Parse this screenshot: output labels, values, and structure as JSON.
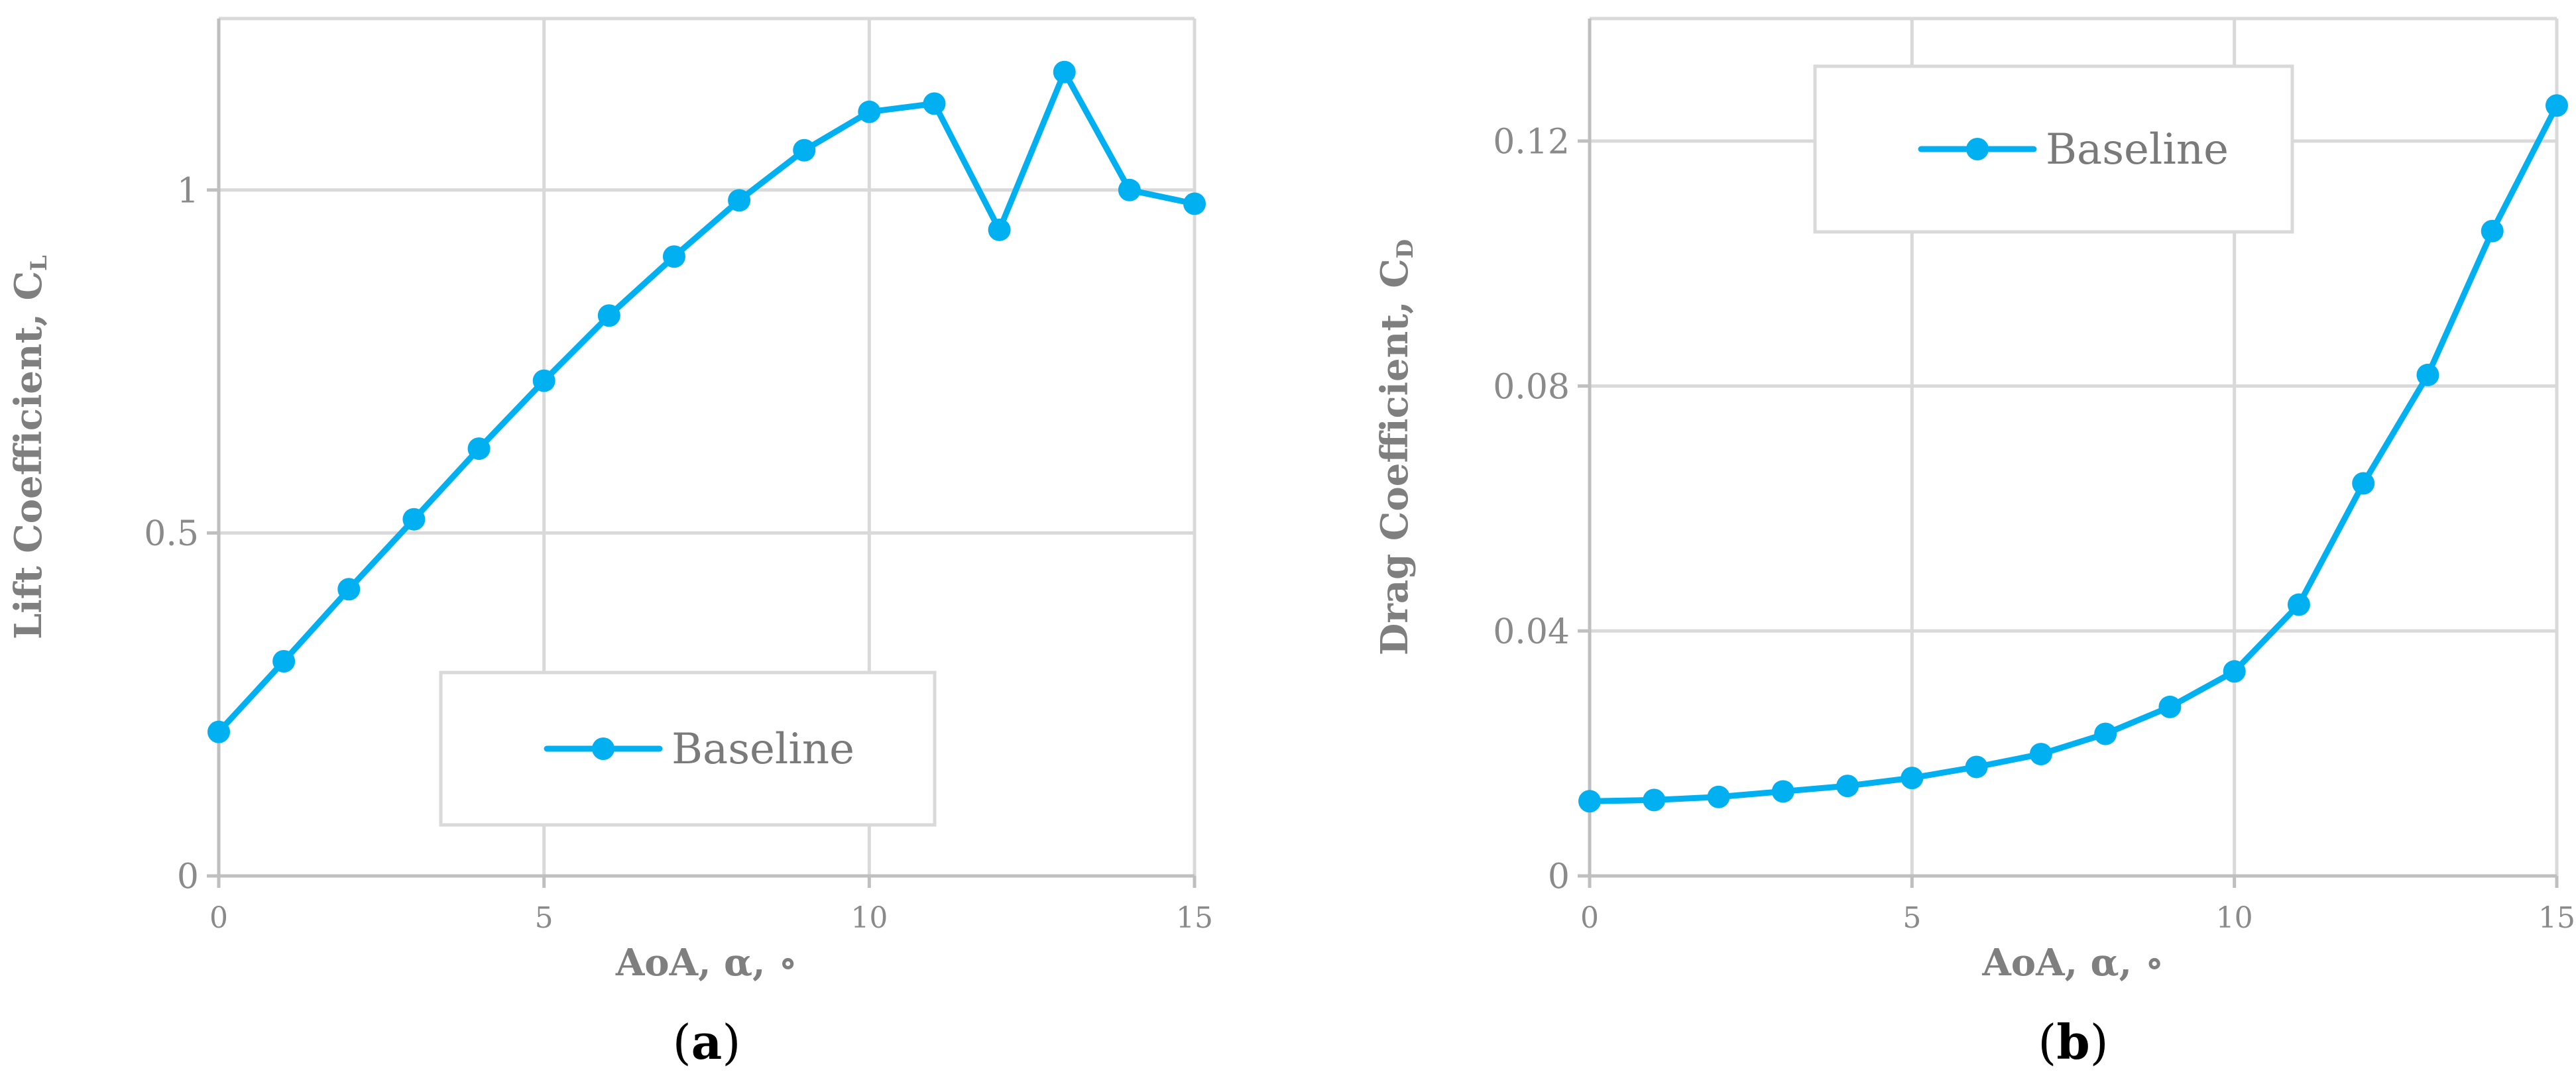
{
  "series_color": "#00b0f0",
  "chart_data": [
    {
      "type": "line",
      "panel_label": "(a)",
      "panel_letter": "a",
      "ylabel": "Lift Coefficient, C",
      "ylabel_sub": "L",
      "xlabel": "AoA, α, ∘",
      "xlim": [
        0,
        15
      ],
      "ylim": [
        0,
        1.25
      ],
      "x_ticks": [
        0,
        5,
        10,
        15
      ],
      "y_ticks": [
        0,
        0.5,
        1
      ],
      "y_tick_labels": [
        "0",
        "0.5",
        "1"
      ],
      "grid": true,
      "legend_position": "bottom-center",
      "series": [
        {
          "name": "Baseline",
          "x": [
            0,
            1,
            2,
            3,
            4,
            5,
            6,
            7,
            8,
            9,
            10,
            11,
            12,
            13,
            14,
            15
          ],
          "y": [
            0.21,
            0.313,
            0.418,
            0.52,
            0.623,
            0.722,
            0.817,
            0.903,
            0.985,
            1.058,
            1.114,
            1.126,
            0.942,
            1.172,
            1.0,
            0.98
          ]
        }
      ]
    },
    {
      "type": "line",
      "panel_label": "(b)",
      "panel_letter": "b",
      "ylabel": "Drag Coefficient, C",
      "ylabel_sub": "D",
      "xlabel": "AoA, α, ∘",
      "xlim": [
        0,
        15
      ],
      "ylim": [
        0,
        0.14
      ],
      "x_ticks": [
        0,
        5,
        10,
        15
      ],
      "y_ticks": [
        0,
        0.04,
        0.08,
        0.12
      ],
      "y_tick_labels": [
        "0",
        "0.04",
        "0.08",
        "0.12"
      ],
      "grid": true,
      "legend_position": "top-center",
      "series": [
        {
          "name": "Baseline",
          "x": [
            0,
            1,
            2,
            3,
            4,
            5,
            6,
            7,
            8,
            9,
            10,
            11,
            12,
            13,
            14,
            15
          ],
          "y": [
            0.0122,
            0.0124,
            0.0129,
            0.0138,
            0.0147,
            0.016,
            0.0178,
            0.0199,
            0.0232,
            0.0276,
            0.0334,
            0.0443,
            0.0641,
            0.0818,
            0.1053,
            0.1258
          ]
        }
      ]
    }
  ]
}
